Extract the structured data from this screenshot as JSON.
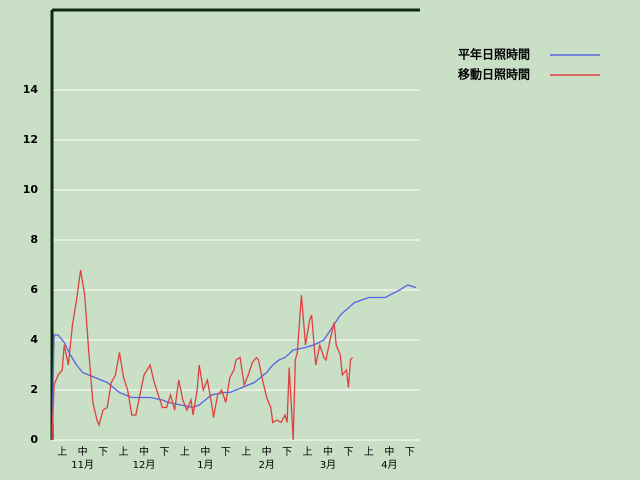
{
  "chart_data": {
    "type": "line",
    "xlim": [
      0,
      180
    ],
    "ylim": [
      0,
      17.2
    ],
    "yticks": [
      0,
      2,
      4,
      6,
      8,
      10,
      12,
      14
    ],
    "grid": true,
    "xticks": [
      {
        "value": 5,
        "label": "上"
      },
      {
        "value": 15,
        "label": "中"
      },
      {
        "value": 25,
        "label": "下"
      },
      {
        "value": 35,
        "label": "上"
      },
      {
        "value": 45,
        "label": "中"
      },
      {
        "value": 55,
        "label": "下"
      },
      {
        "value": 65,
        "label": "上"
      },
      {
        "value": 75,
        "label": "中"
      },
      {
        "value": 85,
        "label": "下"
      },
      {
        "value": 95,
        "label": "上"
      },
      {
        "value": 105,
        "label": "中"
      },
      {
        "value": 115,
        "label": "下"
      },
      {
        "value": 125,
        "label": "上"
      },
      {
        "value": 135,
        "label": "中"
      },
      {
        "value": 145,
        "label": "下"
      },
      {
        "value": 155,
        "label": "上"
      },
      {
        "value": 165,
        "label": "中"
      },
      {
        "value": 175,
        "label": "下"
      }
    ],
    "months": [
      {
        "value": 15,
        "label": "11月"
      },
      {
        "value": 45,
        "label": "12月"
      },
      {
        "value": 75,
        "label": "1月"
      },
      {
        "value": 105,
        "label": "2月"
      },
      {
        "value": 135,
        "label": "3月"
      },
      {
        "value": 165,
        "label": "4月"
      }
    ],
    "series": [
      {
        "name": "平年日照時間",
        "color": "#5566e0",
        "x": [
          0,
          1,
          3,
          6,
          9,
          12,
          15,
          18,
          21,
          24,
          27,
          30,
          33,
          36,
          39,
          42,
          45,
          48,
          51,
          54,
          57,
          60,
          63,
          66,
          69,
          72,
          75,
          78,
          81,
          84,
          87,
          90,
          93,
          96,
          99,
          102,
          105,
          108,
          111,
          114,
          118,
          124,
          128,
          133,
          141,
          148,
          155,
          163,
          170,
          174,
          178
        ],
        "values": [
          0,
          4.2,
          4.2,
          3.9,
          3.4,
          3.0,
          2.7,
          2.6,
          2.5,
          2.4,
          2.3,
          2.1,
          1.9,
          1.8,
          1.7,
          1.7,
          1.7,
          1.7,
          1.65,
          1.6,
          1.5,
          1.45,
          1.4,
          1.35,
          1.3,
          1.4,
          1.6,
          1.8,
          1.85,
          1.9,
          1.9,
          2.0,
          2.1,
          2.2,
          2.3,
          2.5,
          2.7,
          3.0,
          3.2,
          3.3,
          3.6,
          3.7,
          3.8,
          4.0,
          5.0,
          5.5,
          5.7,
          5.7,
          6.0,
          6.2,
          6.1
        ]
      },
      {
        "name": "移動日照時間",
        "color": "#e04040",
        "x": [
          0,
          1,
          3,
          5,
          6,
          8,
          10,
          12,
          14,
          16,
          18,
          20,
          22,
          23,
          25,
          27,
          29,
          31,
          33,
          35,
          37,
          39,
          41,
          43,
          45,
          48,
          50,
          52,
          54,
          56,
          58,
          60,
          62,
          64,
          66,
          68,
          69,
          71,
          72,
          74,
          76,
          78,
          79,
          81,
          83,
          85,
          87,
          89,
          90,
          92,
          94,
          96,
          98,
          100,
          101,
          103,
          105,
          107,
          108,
          110,
          112,
          114,
          115,
          116,
          118,
          119,
          120,
          122,
          124,
          126,
          127,
          129,
          131,
          133,
          134,
          136,
          138,
          139,
          141,
          142,
          144,
          145,
          146,
          147
        ],
        "values": [
          0,
          2.2,
          2.6,
          2.8,
          3.8,
          3.0,
          4.6,
          5.6,
          6.8,
          5.8,
          3.5,
          1.5,
          0.8,
          0.6,
          1.2,
          1.3,
          2.3,
          2.6,
          3.5,
          2.5,
          2.0,
          1.0,
          1.0,
          1.8,
          2.6,
          3.0,
          2.3,
          1.8,
          1.3,
          1.3,
          1.8,
          1.2,
          2.4,
          1.6,
          1.2,
          1.6,
          1.0,
          2.0,
          3.0,
          2.0,
          2.4,
          1.5,
          0.9,
          1.8,
          2.0,
          1.5,
          2.5,
          2.8,
          3.2,
          3.3,
          2.2,
          2.6,
          3.1,
          3.3,
          3.2,
          2.4,
          1.7,
          1.3,
          0.7,
          0.8,
          0.7,
          1.0,
          0.7,
          2.9,
          0.0,
          3.2,
          3.5,
          5.8,
          3.8,
          4.8,
          5.0,
          3.0,
          3.8,
          3.3,
          3.2,
          4.0,
          4.7,
          3.8,
          3.4,
          2.6,
          2.8,
          2.1,
          3.2,
          3.3
        ]
      }
    ]
  }
}
